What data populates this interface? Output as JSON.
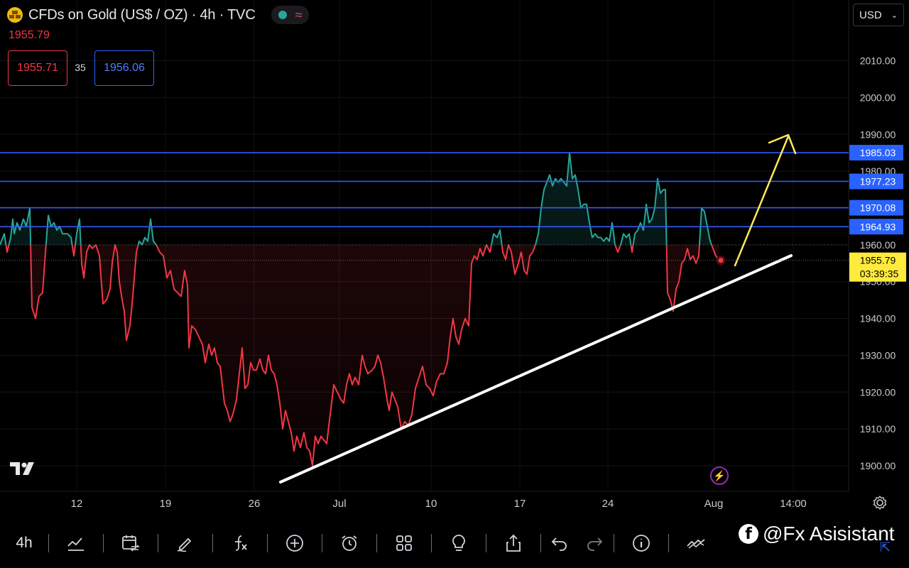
{
  "header": {
    "title": "CFDs on Gold (US$ / OZ) · 4h · TVC",
    "last_price": "1955.79",
    "bid": "1955.71",
    "spread": "35",
    "ask": "1956.06"
  },
  "currency_select": {
    "value": "USD"
  },
  "chart_data": {
    "type": "line",
    "symbol": "CFDs on Gold (US$ / OZ)",
    "interval": "4h",
    "ylim": [
      1892,
      2018
    ],
    "y_ticks": [
      1900,
      1910,
      1920,
      1930,
      1940,
      1950,
      1960,
      1970,
      1980,
      1990,
      2000,
      2010
    ],
    "y_tick_labels": [
      "1900.00",
      "1910.00",
      "1920.00",
      "1930.00",
      "1940.00",
      "1950.00",
      "1960.00",
      "1970.00",
      "1980.00",
      "1990.00",
      "2000.00",
      "2010.00"
    ],
    "x_tick_labels": [
      "12",
      "19",
      "26",
      "Jul",
      "10",
      "17",
      "24",
      "Aug",
      "14:00"
    ],
    "baseline": 1960,
    "horizontal_levels": [
      {
        "value": 1985.03,
        "label": "1985.03"
      },
      {
        "value": 1977.23,
        "label": "1977.23"
      },
      {
        "value": 1970.08,
        "label": "1970.08"
      },
      {
        "value": 1964.93,
        "label": "1964.93"
      }
    ],
    "current_price": {
      "value": 1955.79,
      "label": "1955.79",
      "countdown": "03:39:35"
    },
    "series": [
      {
        "values": [
          [
            0,
            1960
          ],
          [
            6,
            1963
          ],
          [
            10,
            1958
          ],
          [
            15,
            1962
          ],
          [
            18,
            1967
          ],
          [
            20,
            1963
          ],
          [
            24,
            1966
          ],
          [
            28,
            1964
          ],
          [
            33,
            1967
          ],
          [
            37,
            1965
          ],
          [
            40,
            1968
          ],
          [
            42,
            1970
          ],
          [
            45,
            1943
          ],
          [
            50,
            1940
          ],
          [
            55,
            1946
          ],
          [
            60,
            1947
          ],
          [
            64,
            1958
          ],
          [
            68,
            1968
          ],
          [
            72,
            1965
          ],
          [
            76,
            1966
          ],
          [
            80,
            1964
          ],
          [
            84,
            1965
          ],
          [
            88,
            1963
          ],
          [
            95,
            1963
          ],
          [
            100,
            1962
          ],
          [
            104,
            1957
          ],
          [
            108,
            1963
          ],
          [
            112,
            1967
          ],
          [
            115,
            1955
          ],
          [
            118,
            1951
          ],
          [
            122,
            1958
          ],
          [
            126,
            1960
          ],
          [
            130,
            1959
          ],
          [
            135,
            1960
          ],
          [
            140,
            1957
          ],
          [
            145,
            1944
          ],
          [
            150,
            1945
          ],
          [
            155,
            1948
          ],
          [
            158,
            1955
          ],
          [
            162,
            1960
          ],
          [
            165,
            1958
          ],
          [
            168,
            1950
          ],
          [
            172,
            1945
          ],
          [
            175,
            1942
          ],
          [
            178,
            1934
          ],
          [
            183,
            1938
          ],
          [
            187,
            1946
          ],
          [
            192,
            1958
          ],
          [
            196,
            1961
          ],
          [
            200,
            1960
          ],
          [
            204,
            1962
          ],
          [
            208,
            1961
          ],
          [
            212,
            1967
          ],
          [
            216,
            1961
          ],
          [
            220,
            1960
          ],
          [
            225,
            1958
          ],
          [
            230,
            1957
          ],
          [
            235,
            1951
          ],
          [
            240,
            1953
          ],
          [
            245,
            1948
          ],
          [
            250,
            1947
          ],
          [
            255,
            1946
          ],
          [
            260,
            1953
          ],
          [
            264,
            1949
          ],
          [
            266,
            1932
          ],
          [
            270,
            1938
          ],
          [
            275,
            1937
          ],
          [
            280,
            1935
          ],
          [
            285,
            1933
          ],
          [
            289,
            1928
          ],
          [
            294,
            1933
          ],
          [
            298,
            1930
          ],
          [
            302,
            1932
          ],
          [
            306,
            1928
          ],
          [
            310,
            1927
          ],
          [
            316,
            1917
          ],
          [
            320,
            1915
          ],
          [
            324,
            1912
          ],
          [
            328,
            1914
          ],
          [
            333,
            1918
          ],
          [
            337,
            1925
          ],
          [
            341,
            1932
          ],
          [
            345,
            1921
          ],
          [
            349,
            1922
          ],
          [
            353,
            1928
          ],
          [
            357,
            1926
          ],
          [
            361,
            1926
          ],
          [
            366,
            1929
          ],
          [
            370,
            1926
          ],
          [
            374,
            1925
          ],
          [
            378,
            1930
          ],
          [
            382,
            1926
          ],
          [
            386,
            1925
          ],
          [
            390,
            1922
          ],
          [
            394,
            1917
          ],
          [
            398,
            1910
          ],
          [
            402,
            1915
          ],
          [
            406,
            1912
          ],
          [
            410,
            1909
          ],
          [
            414,
            1904
          ],
          [
            418,
            1908
          ],
          [
            423,
            1905
          ],
          [
            428,
            1909
          ],
          [
            432,
            1905
          ],
          [
            436,
            1904
          ],
          [
            440,
            1900
          ],
          [
            444,
            1908
          ],
          [
            448,
            1906
          ],
          [
            452,
            1908
          ],
          [
            456,
            1907
          ],
          [
            460,
            1906
          ],
          [
            465,
            1914
          ],
          [
            470,
            1922
          ],
          [
            475,
            1920
          ],
          [
            480,
            1918
          ],
          [
            484,
            1917
          ],
          [
            488,
            1922
          ],
          [
            492,
            1925
          ],
          [
            496,
            1922
          ],
          [
            500,
            1924
          ],
          [
            505,
            1922
          ],
          [
            510,
            1930
          ],
          [
            514,
            1927
          ],
          [
            518,
            1925
          ],
          [
            524,
            1926
          ],
          [
            528,
            1927
          ],
          [
            532,
            1930
          ],
          [
            536,
            1928
          ],
          [
            540,
            1924
          ],
          [
            545,
            1918
          ],
          [
            548,
            1915
          ],
          [
            552,
            1920
          ],
          [
            556,
            1918
          ],
          [
            560,
            1916
          ],
          [
            565,
            1910
          ],
          [
            570,
            1912
          ],
          [
            575,
            1911
          ],
          [
            580,
            1914
          ],
          [
            585,
            1921
          ],
          [
            590,
            1924
          ],
          [
            595,
            1927
          ],
          [
            600,
            1922
          ],
          [
            605,
            1921
          ],
          [
            610,
            1919
          ],
          [
            615,
            1923
          ],
          [
            620,
            1925
          ],
          [
            625,
            1925
          ],
          [
            630,
            1928
          ],
          [
            634,
            1935
          ],
          [
            638,
            1940
          ],
          [
            642,
            1935
          ],
          [
            646,
            1933
          ],
          [
            650,
            1937
          ],
          [
            655,
            1940
          ],
          [
            660,
            1938
          ],
          [
            664,
            1955
          ],
          [
            668,
            1957
          ],
          [
            672,
            1956
          ],
          [
            676,
            1959
          ],
          [
            680,
            1957
          ],
          [
            685,
            1960
          ],
          [
            690,
            1958
          ],
          [
            695,
            1963
          ],
          [
            700,
            1962
          ],
          [
            704,
            1964
          ],
          [
            708,
            1958
          ],
          [
            712,
            1956
          ],
          [
            716,
            1960
          ],
          [
            720,
            1958
          ],
          [
            725,
            1952
          ],
          [
            730,
            1955
          ],
          [
            734,
            1958
          ],
          [
            738,
            1953
          ],
          [
            742,
            1952
          ],
          [
            746,
            1957
          ],
          [
            750,
            1958
          ],
          [
            754,
            1960
          ],
          [
            758,
            1963
          ],
          [
            762,
            1970
          ],
          [
            766,
            1975
          ],
          [
            770,
            1977
          ],
          [
            774,
            1979
          ],
          [
            778,
            1976
          ],
          [
            782,
            1978
          ],
          [
            786,
            1977
          ],
          [
            790,
            1978
          ],
          [
            794,
            1977
          ],
          [
            798,
            1976
          ],
          [
            802,
            1985
          ],
          [
            806,
            1978
          ],
          [
            810,
            1979
          ],
          [
            814,
            1975
          ],
          [
            818,
            1970
          ],
          [
            822,
            1971
          ],
          [
            826,
            1971
          ],
          [
            830,
            1966
          ],
          [
            834,
            1962
          ],
          [
            838,
            1963
          ],
          [
            842,
            1962
          ],
          [
            846,
            1962
          ],
          [
            850,
            1961
          ],
          [
            854,
            1962
          ],
          [
            858,
            1961
          ],
          [
            862,
            1966
          ],
          [
            866,
            1960
          ],
          [
            870,
            1958
          ],
          [
            874,
            1960
          ],
          [
            878,
            1963
          ],
          [
            882,
            1962
          ],
          [
            886,
            1963
          ],
          [
            890,
            1958
          ],
          [
            894,
            1963
          ],
          [
            898,
            1964
          ],
          [
            902,
            1966
          ],
          [
            906,
            1964
          ],
          [
            910,
            1971
          ],
          [
            914,
            1966
          ],
          [
            918,
            1967
          ],
          [
            922,
            1970
          ],
          [
            926,
            1978
          ],
          [
            930,
            1974
          ],
          [
            934,
            1975
          ],
          [
            937,
            1975
          ],
          [
            940,
            1947
          ],
          [
            944,
            1945
          ],
          [
            948,
            1942
          ],
          [
            952,
            1948
          ],
          [
            956,
            1950
          ],
          [
            960,
            1955
          ],
          [
            964,
            1956
          ],
          [
            968,
            1959
          ],
          [
            972,
            1956
          ],
          [
            976,
            1957
          ],
          [
            980,
            1955
          ],
          [
            984,
            1957
          ],
          [
            988,
            1970
          ],
          [
            992,
            1969
          ],
          [
            996,
            1965
          ],
          [
            1000,
            1961
          ],
          [
            1004,
            1959
          ],
          [
            1008,
            1957
          ],
          [
            1012,
            1955.79
          ]
        ]
      }
    ]
  },
  "toolbar": {
    "timeframe": "4h",
    "watermark": "@Fx Asisistant"
  }
}
